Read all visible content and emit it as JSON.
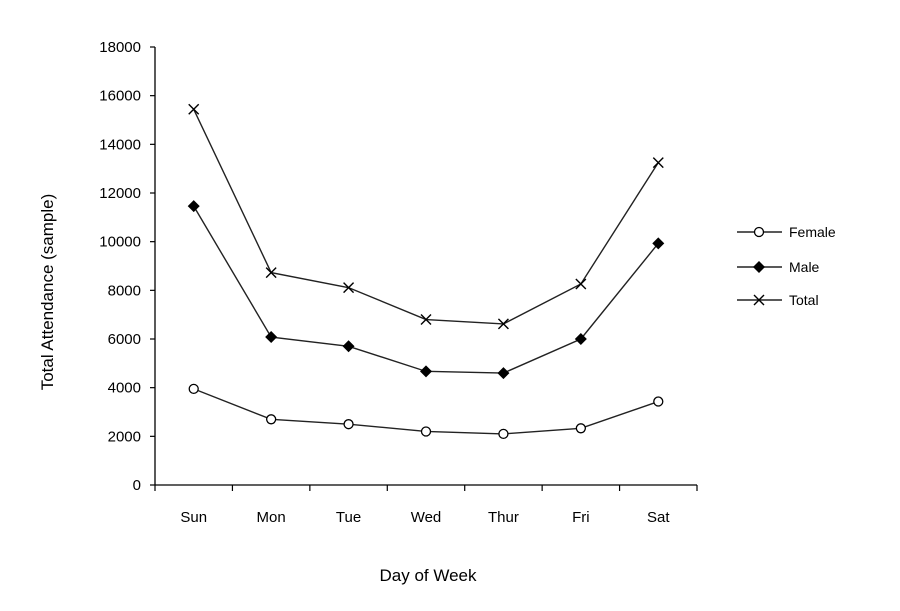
{
  "chart_data": {
    "type": "line",
    "title": "",
    "xlabel": "Day of Week",
    "ylabel": "Total Attendance (sample)",
    "ylim": [
      0,
      18000
    ],
    "yticks": [
      0,
      2000,
      4000,
      6000,
      8000,
      10000,
      12000,
      14000,
      16000,
      18000
    ],
    "categories": [
      "Sun",
      "Mon",
      "Tue",
      "Wed",
      "Thur",
      "Fri",
      "Sat"
    ],
    "grid": false,
    "legend_position": "right",
    "series": [
      {
        "name": "Female",
        "marker": "open-circle",
        "values": [
          3950,
          2700,
          2500,
          2200,
          2100,
          2330,
          3430
        ]
      },
      {
        "name": "Male",
        "marker": "filled-diamond",
        "values": [
          11460,
          6080,
          5700,
          4670,
          4600,
          6000,
          9930
        ]
      },
      {
        "name": "Total",
        "marker": "x",
        "values": [
          15440,
          8730,
          8110,
          6800,
          6620,
          8260,
          13250
        ]
      }
    ]
  }
}
